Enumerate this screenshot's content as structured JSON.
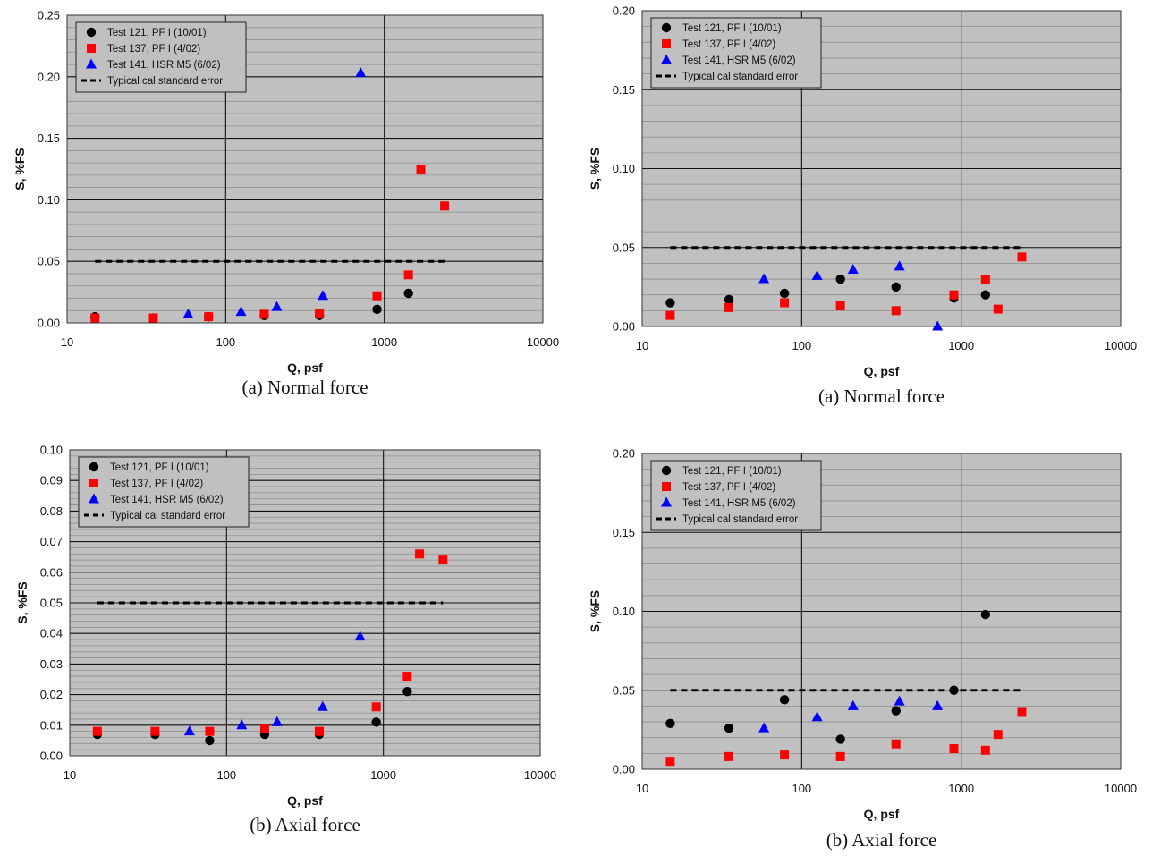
{
  "chart_data": [
    {
      "type": "scatter",
      "caption": "(a) Normal force",
      "xlabel": "Q, psf",
      "ylabel": "S, %FS",
      "xscale": "log",
      "xlim": [
        10,
        10000
      ],
      "ylim": [
        0,
        0.25
      ],
      "yticks": [
        "0.00",
        "0.05",
        "0.10",
        "0.15",
        "0.20",
        "0.25"
      ],
      "xticks": [
        "10",
        "100",
        "1000",
        "10000"
      ],
      "grid": true,
      "legend_position": "top-left",
      "series": [
        {
          "name": "Test 121, PF I (10/01)",
          "marker": "circle",
          "color": "#000000",
          "x": [
            15,
            35,
            78,
            175,
            390,
            900,
            1420
          ],
          "y": [
            0.005,
            0.004,
            0.005,
            0.006,
            0.006,
            0.011,
            0.024
          ]
        },
        {
          "name": "Test 137, PF I (4/02)",
          "marker": "square",
          "color": "#ff0000",
          "x": [
            15,
            35,
            78,
            175,
            390,
            900,
            1420,
            1700,
            2400
          ],
          "y": [
            0.004,
            0.004,
            0.005,
            0.007,
            0.008,
            0.022,
            0.039,
            0.125,
            0.095
          ]
        },
        {
          "name": "Test 141, HSR M5 (6/02)",
          "marker": "triangle",
          "color": "#0000ff",
          "x": [
            58,
            125,
            210,
            410,
            710
          ],
          "y": [
            0.007,
            0.009,
            0.013,
            0.022,
            0.203
          ]
        }
      ],
      "reference_line": {
        "name": "Typical cal standard error",
        "y": 0.05,
        "x": [
          15,
          2400
        ]
      }
    },
    {
      "type": "scatter",
      "caption": "(a) Normal force",
      "xlabel": "Q, psf",
      "ylabel": "S, %FS",
      "xscale": "log",
      "xlim": [
        10,
        10000
      ],
      "ylim": [
        0,
        0.2
      ],
      "yticks": [
        "0.00",
        "0.05",
        "0.10",
        "0.15",
        "0.20"
      ],
      "xticks": [
        "10",
        "100",
        "1000",
        "10000"
      ],
      "grid": true,
      "legend_position": "top-left",
      "series": [
        {
          "name": "Test 121, PF I (10/01)",
          "marker": "circle",
          "color": "#000000",
          "x": [
            15,
            35,
            78,
            175,
            390,
            900,
            1420
          ],
          "y": [
            0.015,
            0.017,
            0.021,
            0.03,
            0.025,
            0.018,
            0.02
          ]
        },
        {
          "name": "Test 137, PF I (4/02)",
          "marker": "square",
          "color": "#ff0000",
          "x": [
            15,
            35,
            78,
            175,
            390,
            900,
            1420,
            1700,
            2400
          ],
          "y": [
            0.007,
            0.012,
            0.015,
            0.013,
            0.01,
            0.02,
            0.03,
            0.011,
            0.044
          ]
        },
        {
          "name": "Test 141, HSR M5 (6/02)",
          "marker": "triangle",
          "color": "#0000ff",
          "x": [
            58,
            125,
            210,
            410,
            710
          ],
          "y": [
            0.03,
            0.032,
            0.036,
            0.038,
            0.0
          ]
        }
      ],
      "reference_line": {
        "name": "Typical cal standard error",
        "y": 0.05,
        "x": [
          15,
          2400
        ]
      }
    },
    {
      "type": "scatter",
      "caption": "(b) Axial force",
      "xlabel": "Q, psf",
      "ylabel": "S, %FS",
      "xscale": "log",
      "xlim": [
        10,
        10000
      ],
      "ylim": [
        0,
        0.1
      ],
      "yticks": [
        "0.00",
        "0.01",
        "0.02",
        "0.03",
        "0.04",
        "0.05",
        "0.06",
        "0.07",
        "0.08",
        "0.09",
        "0.10"
      ],
      "xticks": [
        "10",
        "100",
        "1000",
        "10000"
      ],
      "grid": true,
      "legend_position": "top-left",
      "series": [
        {
          "name": "Test 121, PF I (10/01)",
          "marker": "circle",
          "color": "#000000",
          "x": [
            15,
            35,
            78,
            175,
            390,
            900,
            1420
          ],
          "y": [
            0.007,
            0.007,
            0.005,
            0.007,
            0.007,
            0.011,
            0.021
          ]
        },
        {
          "name": "Test 137, PF I (4/02)",
          "marker": "square",
          "color": "#ff0000",
          "x": [
            15,
            35,
            78,
            175,
            390,
            900,
            1420,
            1700,
            2400
          ],
          "y": [
            0.008,
            0.008,
            0.008,
            0.009,
            0.008,
            0.016,
            0.026,
            0.066,
            0.064
          ]
        },
        {
          "name": "Test 141, HSR M5 (6/02)",
          "marker": "triangle",
          "color": "#0000ff",
          "x": [
            58,
            125,
            210,
            410,
            710
          ],
          "y": [
            0.008,
            0.01,
            0.011,
            0.016,
            0.039
          ]
        }
      ],
      "reference_line": {
        "name": "Typical cal standard error",
        "y": 0.05,
        "x": [
          15,
          2400
        ]
      }
    },
    {
      "type": "scatter",
      "caption": "(b) Axial force",
      "xlabel": "Q, psf",
      "ylabel": "S, %FS",
      "xscale": "log",
      "xlim": [
        10,
        10000
      ],
      "ylim": [
        0,
        0.2
      ],
      "yticks": [
        "0.00",
        "0.05",
        "0.10",
        "0.15",
        "0.20"
      ],
      "xticks": [
        "10",
        "100",
        "1000",
        "10000"
      ],
      "grid": true,
      "legend_position": "top-left",
      "series": [
        {
          "name": "Test 121, PF I (10/01)",
          "marker": "circle",
          "color": "#000000",
          "x": [
            15,
            35,
            78,
            175,
            390,
            900,
            1420
          ],
          "y": [
            0.029,
            0.026,
            0.044,
            0.019,
            0.037,
            0.05,
            0.098
          ]
        },
        {
          "name": "Test 137, PF I (4/02)",
          "marker": "square",
          "color": "#ff0000",
          "x": [
            15,
            35,
            78,
            175,
            390,
            900,
            1420,
            1700,
            2400
          ],
          "y": [
            0.005,
            0.008,
            0.009,
            0.008,
            0.016,
            0.013,
            0.012,
            0.022,
            0.036
          ]
        },
        {
          "name": "Test 141, HSR M5 (6/02)",
          "marker": "triangle",
          "color": "#0000ff",
          "x": [
            58,
            125,
            210,
            410,
            710
          ],
          "y": [
            0.026,
            0.033,
            0.04,
            0.043,
            0.04
          ]
        }
      ],
      "reference_line": {
        "name": "Typical cal standard error",
        "y": 0.05,
        "x": [
          15,
          2400
        ]
      }
    }
  ]
}
